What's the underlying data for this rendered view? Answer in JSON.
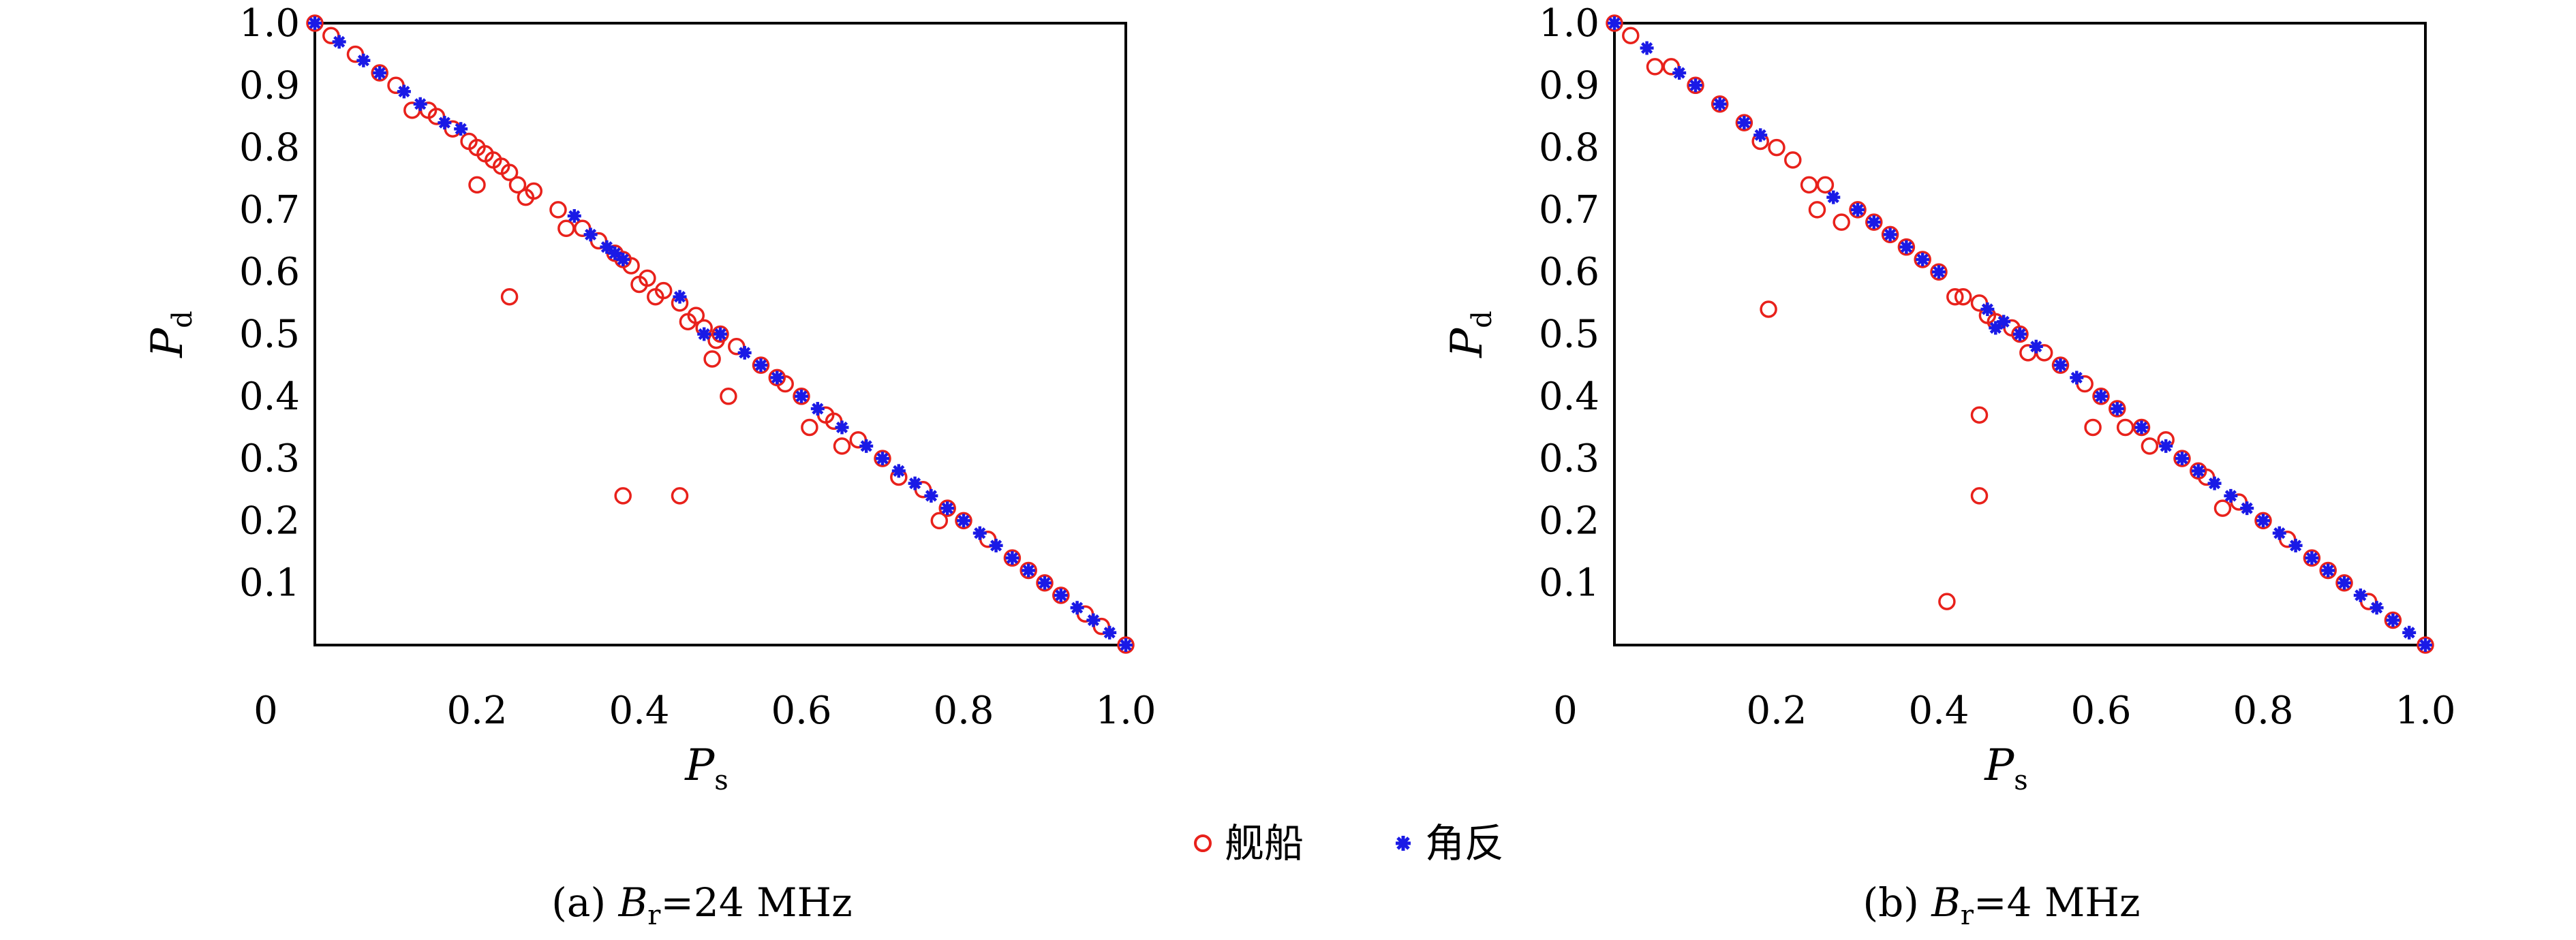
{
  "legend": {
    "items": [
      {
        "label": "舰船",
        "marker": "circle",
        "color": "#e8211b"
      },
      {
        "label": "角反",
        "marker": "star",
        "color": "#1a1ae6"
      }
    ]
  },
  "chart_data": [
    {
      "type": "scatter",
      "caption": "(a) B_r=24 MHz",
      "caption_parts": {
        "prefix": "(a) ",
        "var": "B",
        "sub": "r",
        "suffix": "=24 MHz"
      },
      "xlabel": {
        "var": "P",
        "sub": "s"
      },
      "ylabel": {
        "var": "P",
        "sub": "d"
      },
      "xlim": [
        0,
        1.0
      ],
      "ylim": [
        0,
        1.0
      ],
      "xticks": [
        "0",
        "0.2",
        "0.4",
        "0.6",
        "0.8",
        "1.0"
      ],
      "yticks": [
        "0.1",
        "0.2",
        "0.3",
        "0.4",
        "0.5",
        "0.6",
        "0.7",
        "0.8",
        "0.9",
        "1.0"
      ],
      "grid": false,
      "series": [
        {
          "name": "舰船",
          "marker": "circle",
          "color": "#e8211b",
          "points": [
            [
              0.0,
              1.0
            ],
            [
              0.02,
              0.98
            ],
            [
              0.05,
              0.95
            ],
            [
              0.08,
              0.92
            ],
            [
              0.1,
              0.9
            ],
            [
              0.12,
              0.86
            ],
            [
              0.14,
              0.86
            ],
            [
              0.15,
              0.85
            ],
            [
              0.17,
              0.83
            ],
            [
              0.19,
              0.81
            ],
            [
              0.2,
              0.8
            ],
            [
              0.21,
              0.79
            ],
            [
              0.22,
              0.78
            ],
            [
              0.23,
              0.77
            ],
            [
              0.24,
              0.76
            ],
            [
              0.25,
              0.74
            ],
            [
              0.26,
              0.72
            ],
            [
              0.27,
              0.73
            ],
            [
              0.3,
              0.7
            ],
            [
              0.31,
              0.67
            ],
            [
              0.33,
              0.67
            ],
            [
              0.35,
              0.65
            ],
            [
              0.37,
              0.63
            ],
            [
              0.38,
              0.62
            ],
            [
              0.39,
              0.61
            ],
            [
              0.4,
              0.58
            ],
            [
              0.41,
              0.59
            ],
            [
              0.42,
              0.56
            ],
            [
              0.43,
              0.57
            ],
            [
              0.45,
              0.55
            ],
            [
              0.46,
              0.52
            ],
            [
              0.47,
              0.53
            ],
            [
              0.48,
              0.51
            ],
            [
              0.49,
              0.46
            ],
            [
              0.5,
              0.5
            ],
            [
              0.52,
              0.48
            ],
            [
              0.55,
              0.45
            ],
            [
              0.57,
              0.43
            ],
            [
              0.58,
              0.42
            ],
            [
              0.6,
              0.4
            ],
            [
              0.61,
              0.35
            ],
            [
              0.63,
              0.37
            ],
            [
              0.64,
              0.36
            ],
            [
              0.65,
              0.32
            ],
            [
              0.67,
              0.33
            ],
            [
              0.7,
              0.3
            ],
            [
              0.72,
              0.27
            ],
            [
              0.75,
              0.25
            ],
            [
              0.77,
              0.2
            ],
            [
              0.78,
              0.22
            ],
            [
              0.8,
              0.2
            ],
            [
              0.83,
              0.17
            ],
            [
              0.86,
              0.14
            ],
            [
              0.88,
              0.12
            ],
            [
              0.9,
              0.1
            ],
            [
              0.92,
              0.08
            ],
            [
              0.95,
              0.05
            ],
            [
              0.97,
              0.03
            ],
            [
              1.0,
              0.0
            ],
            [
              0.2,
              0.74
            ],
            [
              0.24,
              0.56
            ],
            [
              0.38,
              0.24
            ],
            [
              0.45,
              0.24
            ],
            [
              0.51,
              0.4
            ],
            [
              0.495,
              0.49
            ]
          ]
        },
        {
          "name": "角反",
          "marker": "star",
          "color": "#1a1ae6",
          "points": [
            [
              0.0,
              1.0
            ],
            [
              0.03,
              0.97
            ],
            [
              0.06,
              0.94
            ],
            [
              0.08,
              0.92
            ],
            [
              0.11,
              0.89
            ],
            [
              0.13,
              0.87
            ],
            [
              0.16,
              0.84
            ],
            [
              0.18,
              0.83
            ],
            [
              0.32,
              0.69
            ],
            [
              0.34,
              0.66
            ],
            [
              0.36,
              0.64
            ],
            [
              0.37,
              0.63
            ],
            [
              0.38,
              0.62
            ],
            [
              0.45,
              0.56
            ],
            [
              0.48,
              0.5
            ],
            [
              0.5,
              0.5
            ],
            [
              0.53,
              0.47
            ],
            [
              0.55,
              0.45
            ],
            [
              0.57,
              0.43
            ],
            [
              0.6,
              0.4
            ],
            [
              0.62,
              0.38
            ],
            [
              0.65,
              0.35
            ],
            [
              0.68,
              0.32
            ],
            [
              0.7,
              0.3
            ],
            [
              0.72,
              0.28
            ],
            [
              0.74,
              0.26
            ],
            [
              0.76,
              0.24
            ],
            [
              0.78,
              0.22
            ],
            [
              0.8,
              0.2
            ],
            [
              0.82,
              0.18
            ],
            [
              0.84,
              0.16
            ],
            [
              0.86,
              0.14
            ],
            [
              0.88,
              0.12
            ],
            [
              0.9,
              0.1
            ],
            [
              0.92,
              0.08
            ],
            [
              0.94,
              0.06
            ],
            [
              0.96,
              0.04
            ],
            [
              0.98,
              0.02
            ],
            [
              1.0,
              0.0
            ]
          ]
        }
      ]
    },
    {
      "type": "scatter",
      "caption": "(b) B_r=4 MHz",
      "caption_parts": {
        "prefix": "(b) ",
        "var": "B",
        "sub": "r",
        "suffix": "=4 MHz"
      },
      "xlabel": {
        "var": "P",
        "sub": "s"
      },
      "ylabel": {
        "var": "P",
        "sub": "d"
      },
      "xlim": [
        0,
        1.0
      ],
      "ylim": [
        0,
        1.0
      ],
      "xticks": [
        "0",
        "0.2",
        "0.4",
        "0.6",
        "0.8",
        "1.0"
      ],
      "yticks": [
        "0.1",
        "0.2",
        "0.3",
        "0.4",
        "0.5",
        "0.6",
        "0.7",
        "0.8",
        "0.9",
        "1.0"
      ],
      "grid": false,
      "series": [
        {
          "name": "舰船",
          "marker": "circle",
          "color": "#e8211b",
          "points": [
            [
              0.0,
              1.0
            ],
            [
              0.02,
              0.98
            ],
            [
              0.05,
              0.93
            ],
            [
              0.07,
              0.93
            ],
            [
              0.1,
              0.9
            ],
            [
              0.13,
              0.87
            ],
            [
              0.16,
              0.84
            ],
            [
              0.18,
              0.81
            ],
            [
              0.2,
              0.8
            ],
            [
              0.22,
              0.78
            ],
            [
              0.24,
              0.74
            ],
            [
              0.25,
              0.7
            ],
            [
              0.26,
              0.74
            ],
            [
              0.28,
              0.68
            ],
            [
              0.3,
              0.7
            ],
            [
              0.32,
              0.68
            ],
            [
              0.34,
              0.66
            ],
            [
              0.36,
              0.64
            ],
            [
              0.38,
              0.62
            ],
            [
              0.4,
              0.6
            ],
            [
              0.42,
              0.56
            ],
            [
              0.43,
              0.56
            ],
            [
              0.45,
              0.55
            ],
            [
              0.46,
              0.53
            ],
            [
              0.47,
              0.52
            ],
            [
              0.49,
              0.51
            ],
            [
              0.5,
              0.5
            ],
            [
              0.51,
              0.47
            ],
            [
              0.53,
              0.47
            ],
            [
              0.55,
              0.45
            ],
            [
              0.58,
              0.42
            ],
            [
              0.6,
              0.4
            ],
            [
              0.62,
              0.38
            ],
            [
              0.63,
              0.35
            ],
            [
              0.65,
              0.35
            ],
            [
              0.66,
              0.32
            ],
            [
              0.68,
              0.33
            ],
            [
              0.7,
              0.3
            ],
            [
              0.72,
              0.28
            ],
            [
              0.73,
              0.27
            ],
            [
              0.75,
              0.22
            ],
            [
              0.77,
              0.23
            ],
            [
              0.8,
              0.2
            ],
            [
              0.83,
              0.17
            ],
            [
              0.86,
              0.14
            ],
            [
              0.88,
              0.12
            ],
            [
              0.9,
              0.1
            ],
            [
              0.93,
              0.07
            ],
            [
              0.96,
              0.04
            ],
            [
              1.0,
              0.0
            ],
            [
              0.19,
              0.54
            ],
            [
              0.45,
              0.37
            ],
            [
              0.45,
              0.24
            ],
            [
              0.41,
              0.07
            ],
            [
              0.59,
              0.35
            ]
          ]
        },
        {
          "name": "角反",
          "marker": "star",
          "color": "#1a1ae6",
          "points": [
            [
              0.0,
              1.0
            ],
            [
              0.04,
              0.96
            ],
            [
              0.08,
              0.92
            ],
            [
              0.1,
              0.9
            ],
            [
              0.13,
              0.87
            ],
            [
              0.16,
              0.84
            ],
            [
              0.18,
              0.82
            ],
            [
              0.27,
              0.72
            ],
            [
              0.3,
              0.7
            ],
            [
              0.32,
              0.68
            ],
            [
              0.34,
              0.66
            ],
            [
              0.36,
              0.64
            ],
            [
              0.38,
              0.62
            ],
            [
              0.4,
              0.6
            ],
            [
              0.46,
              0.54
            ],
            [
              0.47,
              0.51
            ],
            [
              0.48,
              0.52
            ],
            [
              0.5,
              0.5
            ],
            [
              0.52,
              0.48
            ],
            [
              0.55,
              0.45
            ],
            [
              0.57,
              0.43
            ],
            [
              0.6,
              0.4
            ],
            [
              0.62,
              0.38
            ],
            [
              0.65,
              0.35
            ],
            [
              0.68,
              0.32
            ],
            [
              0.7,
              0.3
            ],
            [
              0.72,
              0.28
            ],
            [
              0.74,
              0.26
            ],
            [
              0.76,
              0.24
            ],
            [
              0.78,
              0.22
            ],
            [
              0.8,
              0.2
            ],
            [
              0.82,
              0.18
            ],
            [
              0.84,
              0.16
            ],
            [
              0.86,
              0.14
            ],
            [
              0.88,
              0.12
            ],
            [
              0.9,
              0.1
            ],
            [
              0.92,
              0.08
            ],
            [
              0.94,
              0.06
            ],
            [
              0.96,
              0.04
            ],
            [
              0.98,
              0.02
            ],
            [
              1.0,
              0.0
            ]
          ]
        }
      ]
    }
  ]
}
